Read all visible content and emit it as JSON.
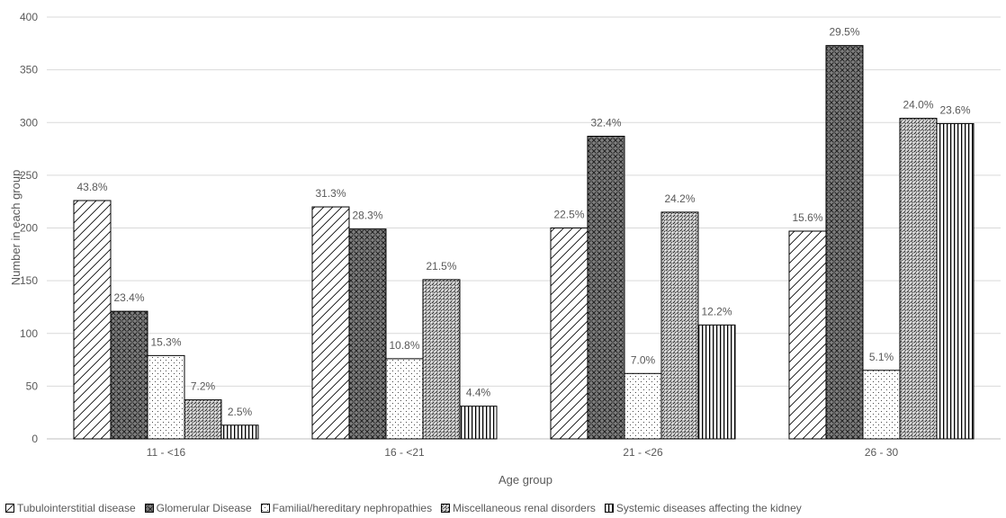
{
  "chart_data": {
    "type": "bar",
    "title": "",
    "xlabel": "Age group",
    "ylabel": "Number in each group",
    "ylim": [
      0,
      400
    ],
    "yticks": [
      0,
      50,
      100,
      150,
      200,
      250,
      300,
      350,
      400
    ],
    "grid": true,
    "legend_position": "bottom",
    "categories": [
      "11 - <16",
      "16 - <21",
      "21 - <26",
      "26 - 30"
    ],
    "series": [
      {
        "name": "Tubulointerstitial disease",
        "pattern": "diagonal-hatch",
        "values": [
          226,
          220,
          200,
          197
        ],
        "labels": [
          "43.8%",
          "31.3%",
          "22.5%",
          "15.6%"
        ]
      },
      {
        "name": "Glomerular Disease",
        "pattern": "crosshatch",
        "values": [
          121,
          199,
          287,
          373
        ],
        "labels": [
          "23.4%",
          "28.3%",
          "32.4%",
          "29.5%"
        ]
      },
      {
        "name": "Familial/hereditary nephropathies",
        "pattern": "sparse-dots",
        "values": [
          79,
          76,
          62,
          65
        ],
        "labels": [
          "15.3%",
          "10.8%",
          "7.0%",
          "5.1%"
        ]
      },
      {
        "name": "Miscellaneous renal disorders",
        "pattern": "dense-dots",
        "values": [
          37,
          151,
          215,
          304
        ],
        "labels": [
          "7.2%",
          "21.5%",
          "24.2%",
          "24.0%"
        ]
      },
      {
        "name": "Systemic diseases affecting the kidney",
        "pattern": "vertical-lines",
        "values": [
          13,
          31,
          108,
          299
        ],
        "labels": [
          "2.5%",
          "4.4%",
          "12.2%",
          "23.6%"
        ]
      }
    ],
    "colors": {
      "bar_stroke": "#000000",
      "text": "#595959",
      "grid": "#d9d9d9",
      "axis": "#bfbfbf",
      "background": "#ffffff"
    }
  }
}
